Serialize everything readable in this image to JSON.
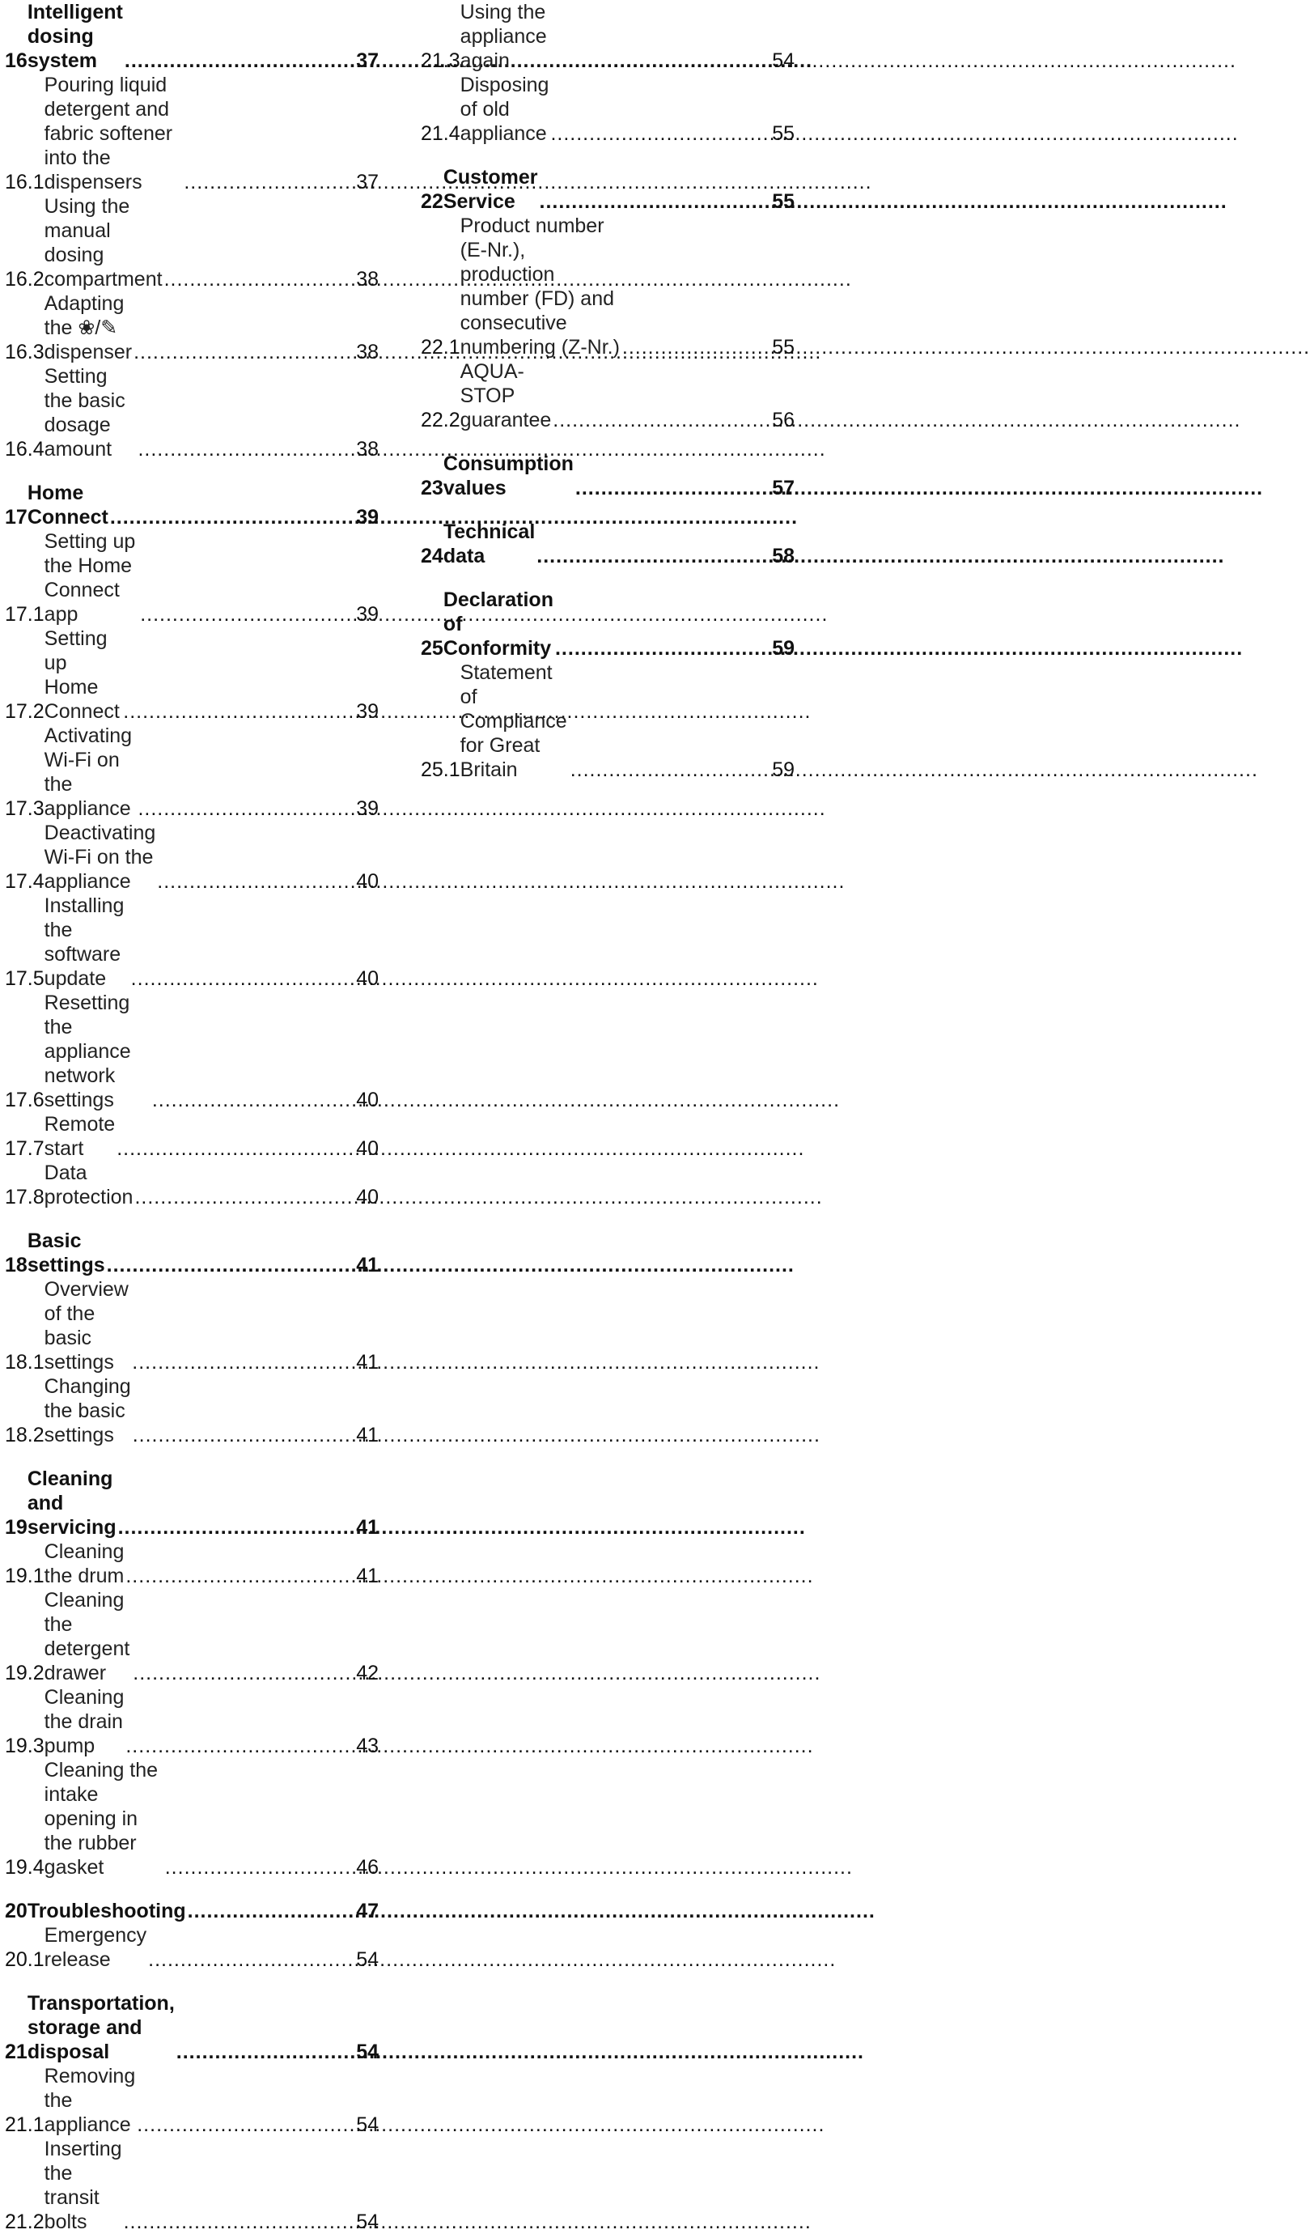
{
  "left_column": [
    {
      "type": "chapter",
      "num": "16",
      "title": "Intelligent dosing system",
      "page": "37"
    },
    {
      "type": "section",
      "num": "16.1",
      "title": "Pouring liquid detergent and fabric softener into the dispensers",
      "page": "37"
    },
    {
      "type": "section",
      "num": "16.2",
      "title": "Using the manual dosing compartment",
      "page": "38"
    },
    {
      "type": "section",
      "num": "16.3",
      "title": "Adapting the ❀/✎ dispenser",
      "page": "38"
    },
    {
      "type": "section",
      "num": "16.4",
      "title": "Setting the basic dosage amount",
      "page": "38"
    },
    {
      "type": "chapter",
      "num": "17",
      "title": "Home Connect",
      "page": "39"
    },
    {
      "type": "section",
      "num": "17.1",
      "title": "Setting up the Home Connect app",
      "page": "39"
    },
    {
      "type": "section",
      "num": "17.2",
      "title": "Setting up Home Connect",
      "page": "39"
    },
    {
      "type": "section",
      "num": "17.3",
      "title": "Activating Wi-Fi on the appliance",
      "page": "39"
    },
    {
      "type": "section",
      "num": "17.4",
      "title": "Deactivating Wi-Fi on the appliance",
      "page": "40"
    },
    {
      "type": "section",
      "num": "17.5",
      "title": "Installing the software update",
      "page": "40"
    },
    {
      "type": "section",
      "num": "17.6",
      "title": "Resetting the appliance network settings",
      "page": "40"
    },
    {
      "type": "section",
      "num": "17.7",
      "title": "Remote start",
      "page": "40"
    },
    {
      "type": "section",
      "num": "17.8",
      "title": "Data protection",
      "page": "40"
    },
    {
      "type": "chapter",
      "num": "18",
      "title": "Basic settings",
      "page": "41"
    },
    {
      "type": "section",
      "num": "18.1",
      "title": "Overview of the basic settings",
      "page": "41"
    },
    {
      "type": "section",
      "num": "18.2",
      "title": "Changing the basic settings",
      "page": "41"
    },
    {
      "type": "chapter",
      "num": "19",
      "title": "Cleaning and servicing",
      "page": "41"
    },
    {
      "type": "section",
      "num": "19.1",
      "title": "Cleaning the drum",
      "page": "41"
    },
    {
      "type": "section",
      "num": "19.2",
      "title": "Cleaning the detergent drawer",
      "page": "42"
    },
    {
      "type": "section",
      "num": "19.3",
      "title": "Cleaning the drain pump",
      "page": "43"
    },
    {
      "type": "section",
      "num": "19.4",
      "title": "Cleaning the intake opening in the rubber gasket",
      "page": "46"
    },
    {
      "type": "chapter",
      "num": "20",
      "title": "Troubleshooting",
      "page": "47"
    },
    {
      "type": "section",
      "num": "20.1",
      "title": "Emergency release",
      "page": "54"
    },
    {
      "type": "chapter",
      "num": "21",
      "title": "Transportation, storage and disposal",
      "page": "54"
    },
    {
      "type": "section",
      "num": "21.1",
      "title": "Removing the appliance",
      "page": "54"
    },
    {
      "type": "section",
      "num": "21.2",
      "title": "Inserting the transit bolts",
      "page": "54"
    }
  ],
  "right_column": [
    {
      "type": "section",
      "num": "21.3",
      "title": "Using the appliance again",
      "page": "54"
    },
    {
      "type": "section",
      "num": "21.4",
      "title": "Disposing of old appliance",
      "page": "55"
    },
    {
      "type": "chapter",
      "num": "22",
      "title": "Customer Service",
      "page": "55"
    },
    {
      "type": "section",
      "num": "22.1",
      "title": "Product number (E-Nr.), production number (FD) and consecutive numbering (Z-Nr.)",
      "page": "55"
    },
    {
      "type": "section",
      "num": "22.2",
      "title": "AQUA-STOP guarantee",
      "page": "56"
    },
    {
      "type": "chapter",
      "num": "23",
      "title": "Consumption values",
      "page": "57"
    },
    {
      "type": "chapter",
      "num": "24",
      "title": "Technical data",
      "page": "58"
    },
    {
      "type": "chapter",
      "num": "25",
      "title": "Declaration of Conformity",
      "page": "59"
    },
    {
      "type": "section",
      "num": "25.1",
      "title": "Statement of Compliance for Great Britain",
      "page": "59"
    }
  ]
}
